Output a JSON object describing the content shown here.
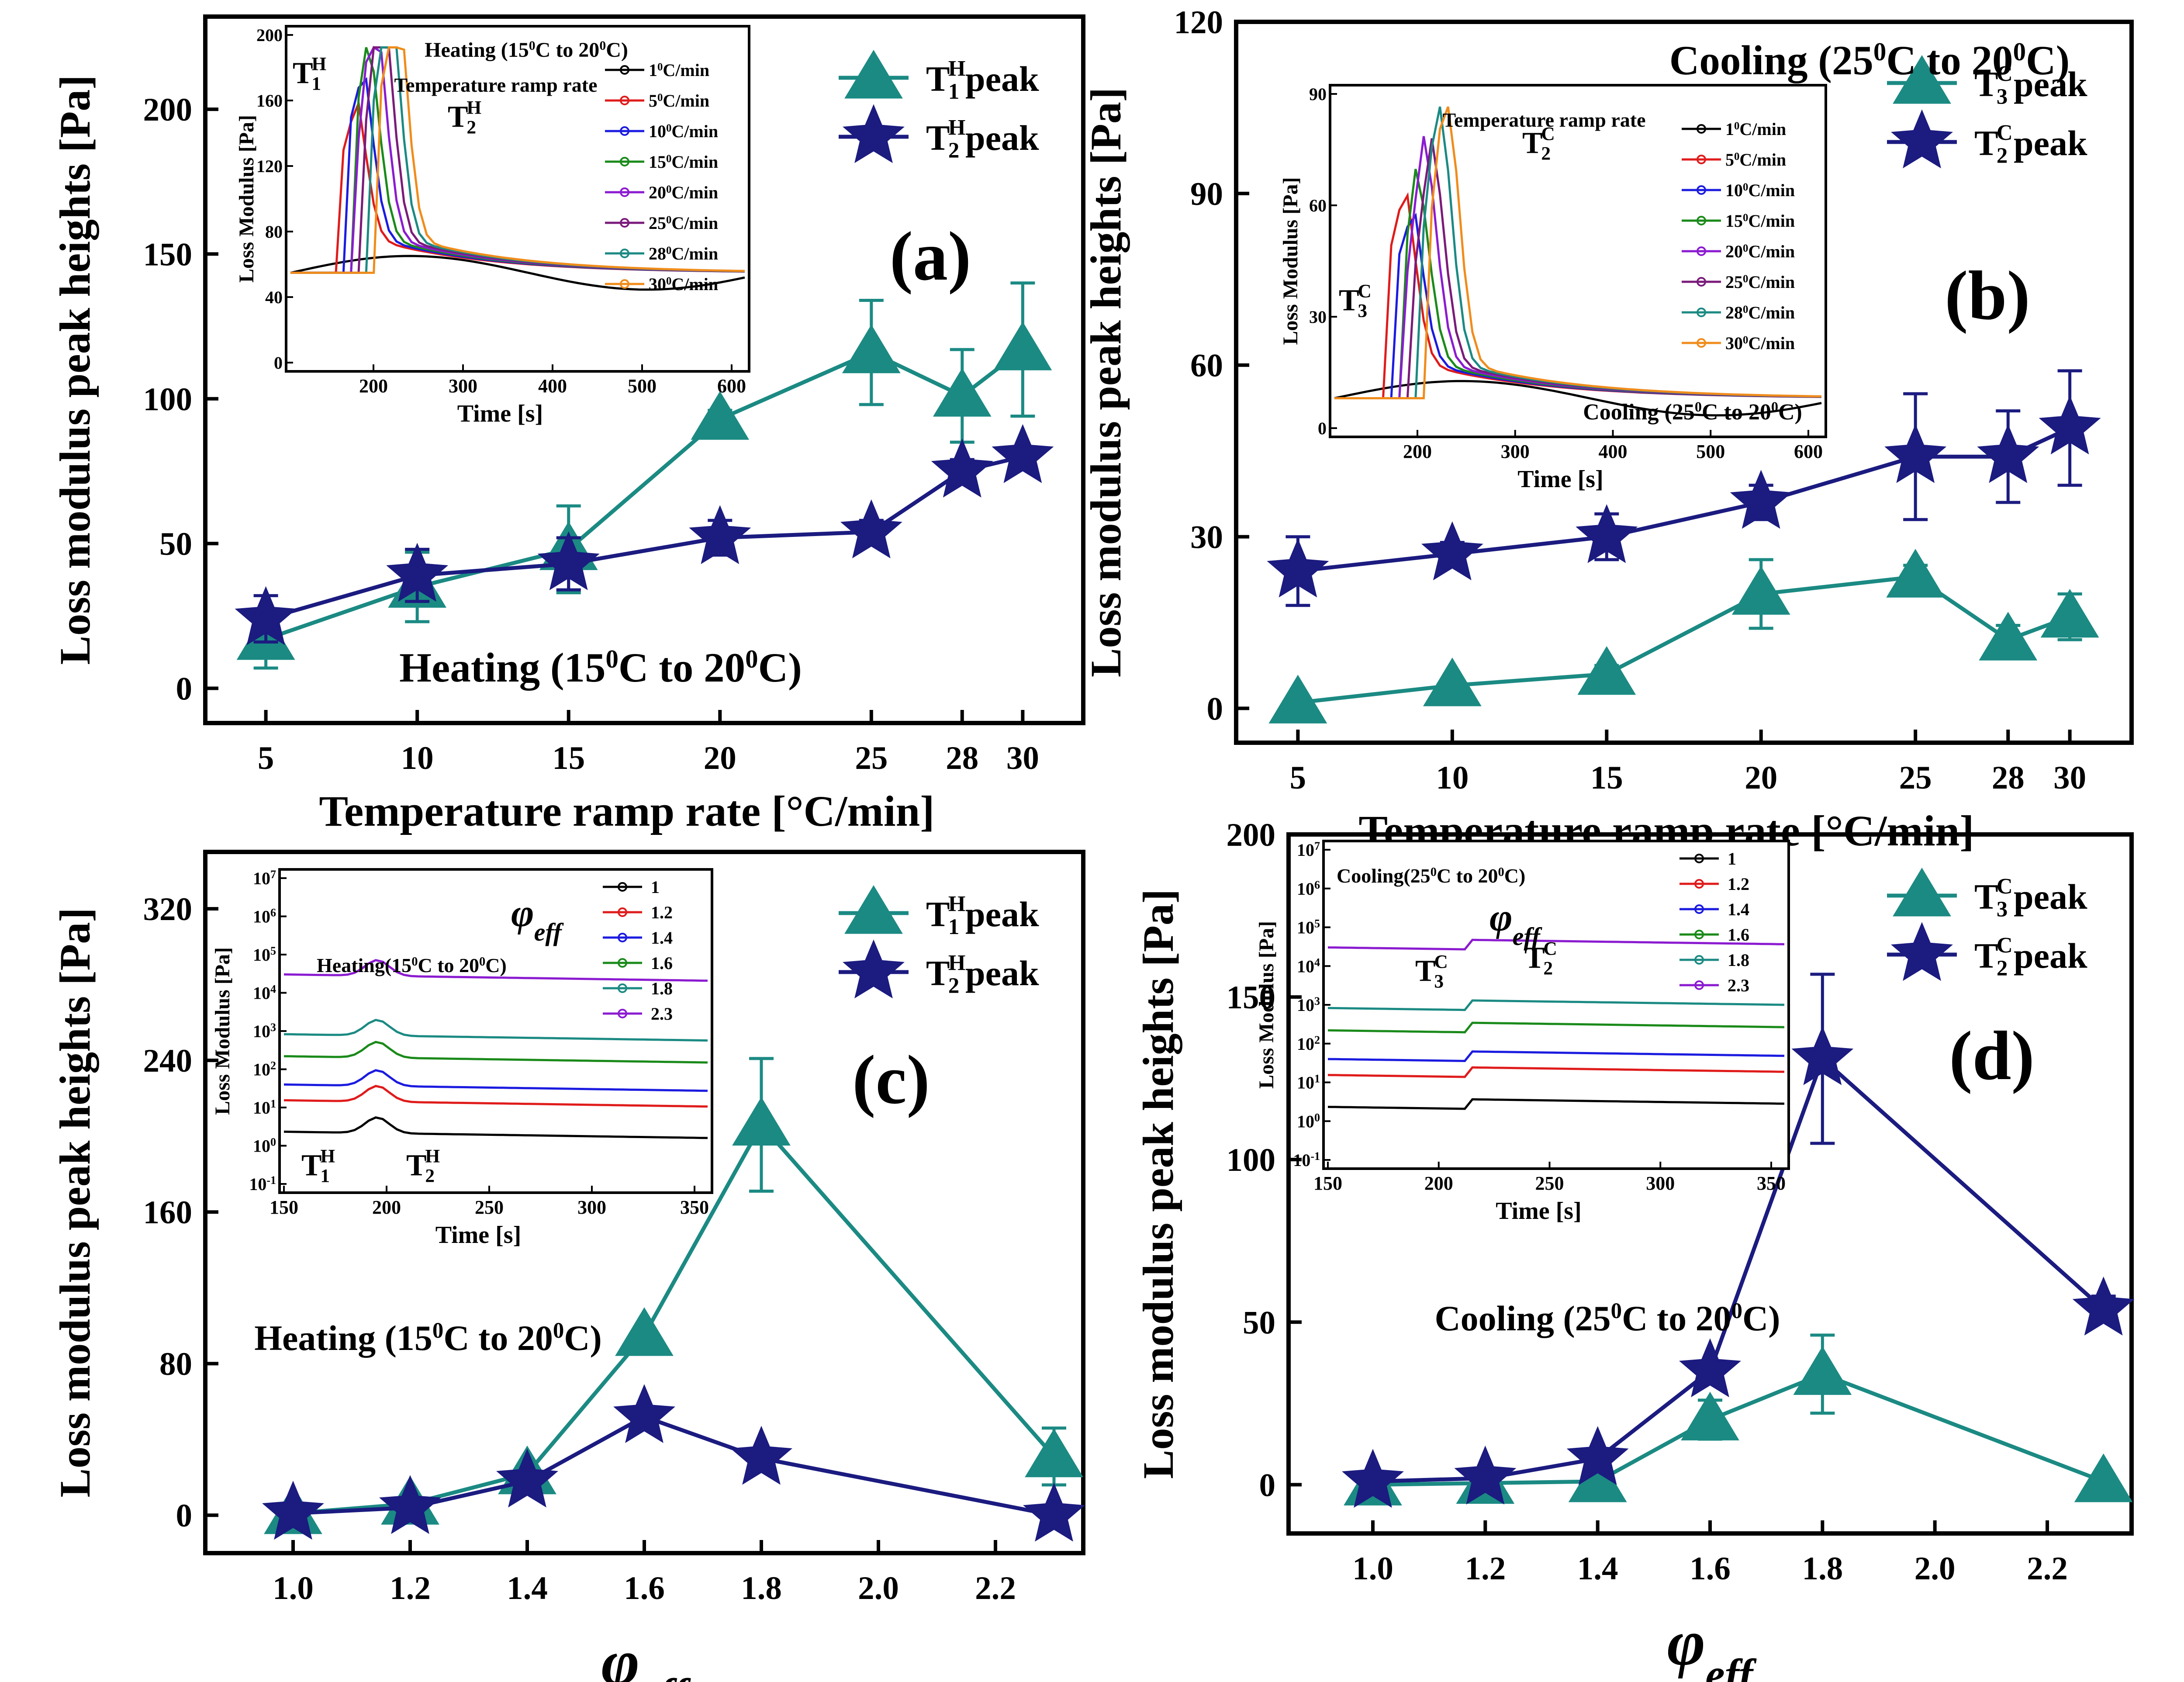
{
  "colors": {
    "teal": "#1b8a83",
    "navy": "#1b1b80"
  },
  "chart_data": [
    {
      "panel": "a",
      "type": "line",
      "panel_label": "(a)",
      "xlabel": "Temperature ramp rate [°C/min]",
      "ylabel": "Loss modulus peak heights [Pa]",
      "x": [
        5,
        10,
        15,
        20,
        25,
        28,
        30
      ],
      "xticks": [
        "5",
        "10",
        "15",
        "20",
        "25",
        "28",
        "30"
      ],
      "xlim": [
        3,
        32
      ],
      "ylim": [
        -12,
        232
      ],
      "yticks": [
        0,
        50,
        100,
        150,
        200
      ],
      "annotation": "Heating (15°C to 20°C)",
      "legend": {
        "position": "top-right",
        "entries": [
          "T1H peak",
          "T2H peak"
        ]
      },
      "series": [
        {
          "name": "T1H peak",
          "marker": "triangle",
          "values": [
            17,
            35,
            48,
            93,
            116,
            101,
            117
          ],
          "errors": [
            10,
            12,
            15,
            3,
            18,
            16,
            23
          ]
        },
        {
          "name": "T2H peak",
          "marker": "star",
          "values": [
            24,
            39,
            43,
            52,
            54,
            75,
            80
          ],
          "errors": [
            8,
            9,
            9,
            6,
            4,
            4,
            3
          ]
        }
      ],
      "inset": {
        "title": "Heating (15°C to 20°C)",
        "subtitle": "Temperature ramp rate",
        "xlabel": "Time [s]",
        "ylabel": "Loss Modulus [Pa]",
        "xtick_labels": [
          "200",
          "300",
          "400",
          "500",
          "600"
        ],
        "ytick_labels": [
          "0",
          "40",
          "80",
          "120",
          "160",
          "200"
        ],
        "legend": [
          "1°C/min",
          "5°C/min",
          "10°C/min",
          "15°C/min",
          "20°C/min",
          "25°C/min",
          "28°C/min",
          "30°C/min"
        ],
        "peak_labels": [
          "T1H",
          "T2H"
        ]
      }
    },
    {
      "panel": "b",
      "type": "line",
      "panel_label": "(b)",
      "xlabel": "Temperature ramp rate [°C/min]",
      "ylabel": "Loss modulus peak heights [Pa]",
      "x": [
        5,
        10,
        15,
        20,
        25,
        28,
        30
      ],
      "xticks": [
        "5",
        "10",
        "15",
        "20",
        "25",
        "28",
        "30"
      ],
      "xlim": [
        3,
        32
      ],
      "ylim": [
        -6,
        120
      ],
      "yticks": [
        0,
        30,
        60,
        90,
        120
      ],
      "annotation": "Cooling (25°C to 20°C)",
      "legend": {
        "position": "top-right",
        "entries": [
          "T3C peak",
          "T2C peak"
        ]
      },
      "series": [
        {
          "name": "T3C peak",
          "marker": "triangle",
          "values": [
            1,
            4,
            6,
            20,
            23,
            12,
            16
          ],
          "errors": [
            0.5,
            1,
            1.5,
            6,
            2,
            2.5,
            4
          ]
        },
        {
          "name": "T2C peak",
          "marker": "star",
          "values": [
            24,
            27,
            30,
            36,
            44,
            44,
            49
          ],
          "errors": [
            6,
            2,
            4,
            3,
            11,
            8,
            10
          ]
        }
      ],
      "inset": {
        "title": "Cooling (25°C to 20°C)",
        "subtitle": "Temperature ramp rate",
        "xlabel": "Time [s]",
        "ylabel": "Loss Modulus [Pa]",
        "xtick_labels": [
          "200",
          "300",
          "400",
          "500",
          "600"
        ],
        "ytick_labels": [
          "0",
          "30",
          "60",
          "90"
        ],
        "legend": [
          "1°C/min",
          "5°C/min",
          "10°C/min",
          "15°C/min",
          "20°C/min",
          "25°C/min",
          "28°C/min",
          "30°C/min"
        ],
        "peak_labels": [
          "T3C",
          "T2C"
        ]
      }
    },
    {
      "panel": "c",
      "type": "line",
      "panel_label": "(c)",
      "xlabel": "φeff",
      "ylabel": "Loss modulus peak heights [Pa]",
      "x": [
        1.0,
        1.2,
        1.4,
        1.6,
        1.8,
        2.3
      ],
      "xticks": [
        "1.0",
        "1.2",
        "1.4",
        "1.6",
        "1.8",
        "2.0",
        "2.2"
      ],
      "xtick_values": [
        1.0,
        1.2,
        1.4,
        1.6,
        1.8,
        2.0,
        2.2
      ],
      "xlim": [
        0.85,
        2.35
      ],
      "ylim": [
        -20,
        350
      ],
      "yticks": [
        0,
        80,
        160,
        240,
        320
      ],
      "annotation": "Heating (15°C to 20°C)",
      "legend": {
        "position": "top-right",
        "entries": [
          "T1H peak",
          "T2H peak"
        ]
      },
      "series": [
        {
          "name": "T1H peak",
          "marker": "triangle",
          "values": [
            1,
            6,
            22,
            95,
            206,
            31
          ],
          "errors": [
            1,
            2,
            3,
            3,
            35,
            15
          ]
        },
        {
          "name": "T2H peak",
          "marker": "star",
          "values": [
            1,
            4,
            18,
            52,
            30,
            0
          ],
          "errors": [
            1,
            1,
            2,
            3,
            3,
            0
          ]
        }
      ],
      "inset": {
        "title": "Heating(15°C to 20°C)",
        "symbol": "φeff",
        "xlabel": "Time [s]",
        "ylabel": "Loss Modulus [Pa]",
        "xtick_labels": [
          "150",
          "200",
          "250",
          "300",
          "350"
        ],
        "ytick_labels": [
          "10-1",
          "100",
          "101",
          "102",
          "103",
          "104",
          "105",
          "106",
          "107"
        ],
        "legend": [
          "1",
          "1.2",
          "1.4",
          "1.6",
          "1.8",
          "2.3"
        ],
        "peak_labels": [
          "T1H",
          "T2H"
        ]
      }
    },
    {
      "panel": "d",
      "type": "line",
      "panel_label": "(d)",
      "xlabel": "φeff",
      "ylabel": "Loss modulus peak heights [Pa]",
      "x": [
        1.0,
        1.2,
        1.4,
        1.6,
        1.8,
        2.3
      ],
      "xticks": [
        "1.0",
        "1.2",
        "1.4",
        "1.6",
        "1.8",
        "2.0",
        "2.2"
      ],
      "xtick_values": [
        1.0,
        1.2,
        1.4,
        1.6,
        1.8,
        2.0,
        2.2
      ],
      "xlim": [
        0.85,
        2.35
      ],
      "ylim": [
        -15,
        200
      ],
      "yticks": [
        0,
        50,
        100,
        150,
        200
      ],
      "annotation": "Cooling (25°C to 20°C)",
      "legend": {
        "position": "top-right",
        "entries": [
          "T3C peak",
          "T2C peak"
        ]
      },
      "series": [
        {
          "name": "T3C peak",
          "marker": "triangle",
          "values": [
            0,
            0.5,
            1,
            20,
            34,
            1
          ],
          "errors": [
            0.5,
            0.5,
            0.5,
            6,
            12,
            0.5
          ]
        },
        {
          "name": "T2C peak",
          "marker": "star",
          "values": [
            1,
            2,
            8,
            35,
            131,
            54
          ],
          "errors": [
            0.5,
            0.5,
            1,
            3,
            26,
            4
          ]
        }
      ],
      "inset": {
        "title": "Cooling(25°C to 20°C)",
        "symbol": "φeff",
        "xlabel": "Time [s]",
        "ylabel": "Loss Modulus [Pa]",
        "xtick_labels": [
          "150",
          "200",
          "250",
          "300",
          "350"
        ],
        "ytick_labels": [
          "10-1",
          "100",
          "101",
          "102",
          "103",
          "104",
          "105",
          "106",
          "107"
        ],
        "legend": [
          "1",
          "1.2",
          "1.4",
          "1.6",
          "1.8",
          "2.3"
        ],
        "peak_labels": [
          "T3C",
          "T2C"
        ]
      }
    }
  ]
}
